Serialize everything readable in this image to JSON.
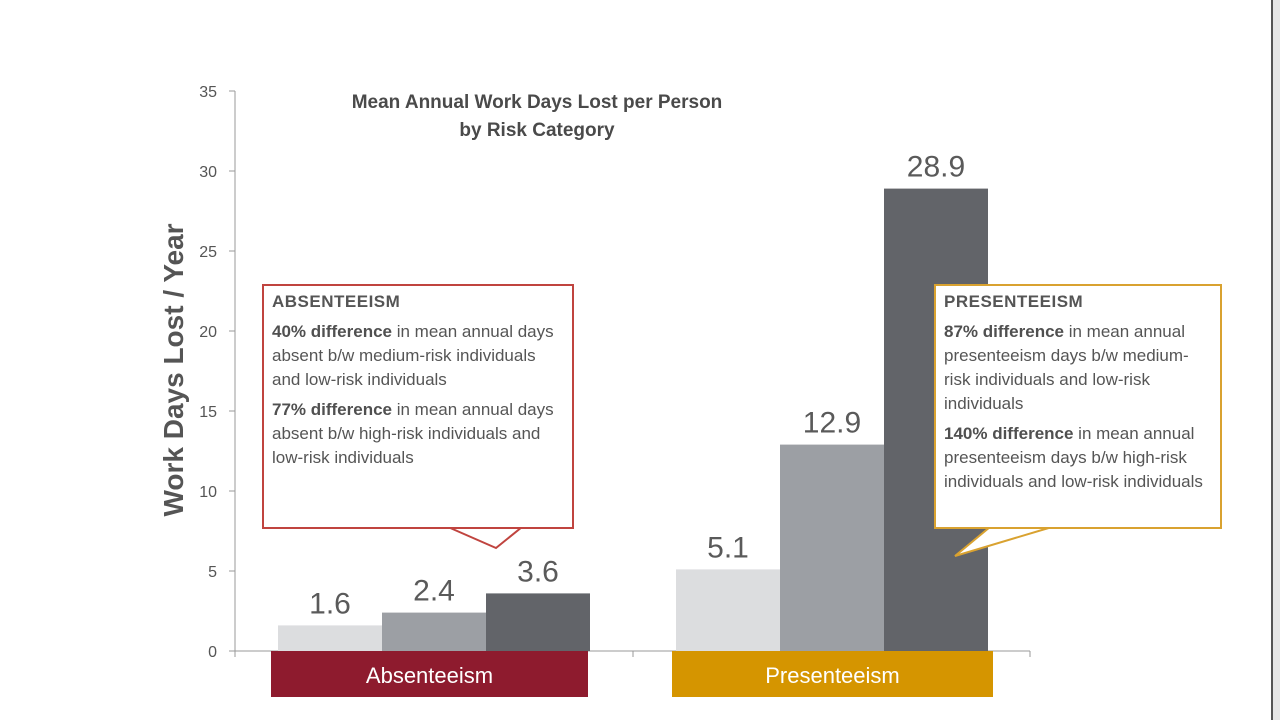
{
  "chart_data": {
    "type": "bar",
    "title": "Mean Annual Work Days Lost per Person",
    "subtitle": "by Risk Category",
    "xlabel": "",
    "ylabel": "Work Days Lost / Year",
    "ylim": [
      0,
      35
    ],
    "yticks": [
      0,
      5,
      10,
      15,
      20,
      25,
      30,
      35
    ],
    "categories": [
      "Absenteeism",
      "Presenteeism"
    ],
    "series": [
      {
        "name": "Low risk",
        "color": "#dcdddf",
        "values": [
          1.6,
          5.1
        ]
      },
      {
        "name": "Medium risk",
        "color": "#9c9fa4",
        "values": [
          2.4,
          12.9
        ]
      },
      {
        "name": "High risk",
        "color": "#626469",
        "values": [
          3.6,
          28.9
        ]
      }
    ],
    "data_labels": [
      [
        "1.6",
        "2.4",
        "3.6"
      ],
      [
        "5.1",
        "12.9",
        "28.9"
      ]
    ],
    "category_colors": [
      "#8e1b2e",
      "#d59500"
    ]
  },
  "callouts": {
    "absenteeism": {
      "heading": "ABSENTEEISM",
      "p1_bold": "40% difference",
      "p1_rest": " in mean annual days absent b/w medium-risk individuals and low-risk individuals",
      "p2_bold": "77% difference",
      "p2_rest": " in mean annual days absent b/w high-risk individuals and low-risk individuals",
      "border_color": "#c0443f"
    },
    "presenteeism": {
      "heading": "PRESENTEEISM",
      "p1_bold": "87% difference",
      "p1_rest": " in mean annual presenteeism days b/w medium-risk individuals and low-risk individuals",
      "p2_bold": "140% difference",
      "p2_rest": " in mean annual presenteeism days b/w high-risk individuals and low-risk individuals",
      "border_color": "#d9a230"
    }
  }
}
